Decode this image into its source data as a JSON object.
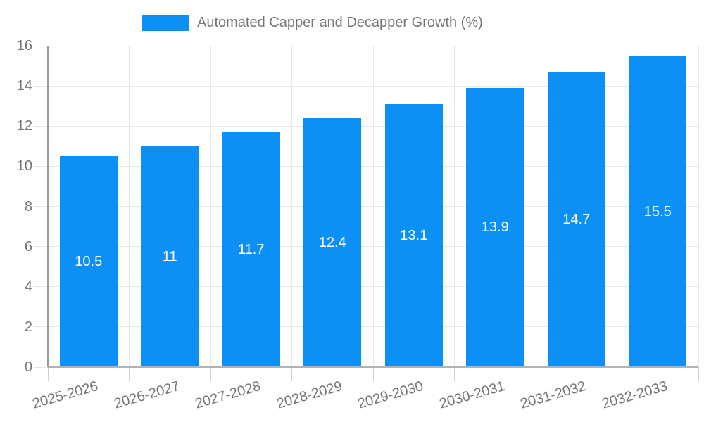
{
  "legend": {
    "label": "Automated Capper and Decapper Growth (%)"
  },
  "chart_data": {
    "type": "bar",
    "title": "Automated Capper and Decapper Growth (%)",
    "categories": [
      "2025-2026",
      "2026-2027",
      "2027-2028",
      "2028-2029",
      "2029-2030",
      "2030-2031",
      "2031-2032",
      "2032-2033"
    ],
    "values": [
      10.5,
      11,
      11.7,
      12.4,
      13.1,
      13.9,
      14.7,
      15.5
    ],
    "value_labels": [
      "10.5",
      "11",
      "11.7",
      "12.4",
      "13.1",
      "13.9",
      "14.7",
      "15.5"
    ],
    "ylim": [
      0,
      16
    ],
    "yticks": [
      0,
      2,
      4,
      6,
      8,
      10,
      12,
      14,
      16
    ],
    "xlabel": "",
    "ylabel": "",
    "grid": true,
    "legend_position": "top",
    "colors": {
      "bar": "#0d90f5",
      "value_label": "#ffffff",
      "axis_text": "#757575",
      "grid_line": "#e6e6e6",
      "y_axis_line": "#9a9a9a",
      "baseline": "#b2b2b2",
      "tick_mark": "#cfcfcf",
      "background": "#ffffff"
    }
  }
}
